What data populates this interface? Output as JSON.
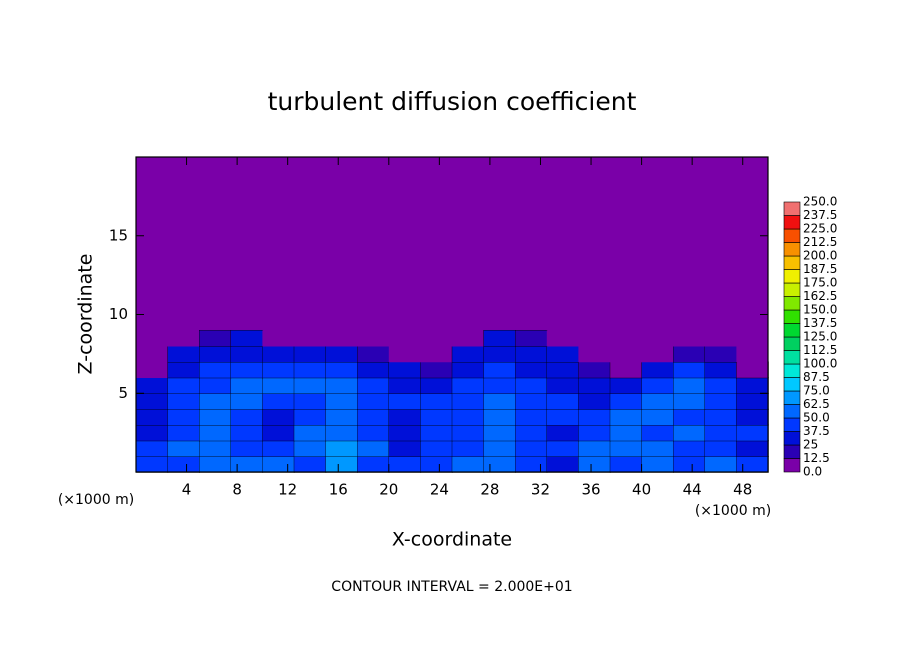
{
  "chart_data": {
    "type": "contour",
    "title": "turbulent diffusion coefficient",
    "x_label": "X-coordinate",
    "y_label": "Z-coordinate",
    "x_unit": "(×1000 m)",
    "y_unit": "(×1000 m)",
    "footnote": "CONTOUR INTERVAL = 2.000E+01",
    "xlim": [
      0,
      50
    ],
    "ylim": [
      0,
      20
    ],
    "xticks": [
      4,
      8,
      12,
      16,
      20,
      24,
      28,
      32,
      36,
      40,
      44,
      48
    ],
    "yticks": [
      5,
      10,
      15
    ],
    "field": {
      "x_edges": [
        0,
        2.5,
        5,
        7.5,
        10,
        12.5,
        15,
        17.5,
        20,
        22.5,
        25,
        27.5,
        30,
        32.5,
        35,
        37.5,
        40,
        42.5,
        45,
        47.5,
        50
      ],
      "z_edges": [
        0,
        1,
        2,
        3,
        4,
        5,
        6,
        7,
        8,
        9
      ],
      "values": [
        [
          45,
          40,
          55,
          60,
          50,
          45,
          70,
          45,
          40,
          45,
          60,
          50,
          40,
          35,
          50,
          45,
          55,
          45,
          50,
          40
        ],
        [
          40,
          50,
          60,
          45,
          40,
          50,
          65,
          55,
          35,
          40,
          45,
          50,
          45,
          40,
          55,
          60,
          50,
          45,
          40,
          35
        ],
        [
          35,
          45,
          55,
          40,
          35,
          55,
          60,
          45,
          35,
          40,
          40,
          55,
          40,
          35,
          45,
          55,
          45,
          50,
          45,
          40
        ],
        [
          35,
          40,
          50,
          45,
          35,
          45,
          55,
          40,
          35,
          45,
          40,
          50,
          45,
          40,
          40,
          50,
          55,
          45,
          40,
          35
        ],
        [
          30,
          40,
          55,
          50,
          40,
          45,
          50,
          45,
          40,
          40,
          45,
          50,
          40,
          40,
          35,
          45,
          55,
          50,
          40,
          30
        ],
        [
          25,
          45,
          45,
          55,
          50,
          50,
          50,
          45,
          35,
          30,
          45,
          45,
          40,
          35,
          25,
          30,
          45,
          50,
          40,
          25
        ],
        [
          0,
          35,
          40,
          45,
          40,
          45,
          40,
          35,
          25,
          20,
          35,
          40,
          35,
          30,
          20,
          10,
          25,
          40,
          35,
          10
        ],
        [
          0,
          30,
          35,
          35,
          30,
          30,
          30,
          20,
          0,
          0,
          30,
          35,
          30,
          25,
          0,
          0,
          0,
          20,
          20,
          0
        ],
        [
          0,
          0,
          20,
          25,
          0,
          0,
          0,
          0,
          0,
          0,
          0,
          30,
          20,
          0,
          0,
          0,
          0,
          0,
          0,
          0
        ]
      ]
    },
    "colorbar": {
      "levels": [
        {
          "value": 0,
          "label": "0.0"
        },
        12.5,
        25.0,
        37.5,
        {
          "value": 50,
          "label": "50.0"
        },
        62.5,
        {
          "value": 75,
          "label": "75.0"
        },
        87.5,
        {
          "value": 100,
          "label": "100.0"
        },
        112.5,
        {
          "value": 125,
          "label": "125.0"
        },
        137.5,
        {
          "value": 150,
          "label": "150.0"
        },
        162.5,
        {
          "value": 175,
          "label": "175.0"
        },
        187.5,
        {
          "value": 200,
          "label": "200.0"
        },
        212.5,
        {
          "value": 225,
          "label": "225.0"
        },
        237.5,
        {
          "value": 250,
          "label": "250.0"
        }
      ],
      "colors": [
        "#7a00a8",
        "#2a00b4",
        "#0010d8",
        "#0038ff",
        "#0068ff",
        "#0098ff",
        "#00c8ff",
        "#00e8d8",
        "#00e0a0",
        "#00d060",
        "#00d830",
        "#30e000",
        "#80e800",
        "#c8f000",
        "#f0f000",
        "#f8c000",
        "#f89000",
        "#f85000",
        "#f01010",
        "#f07070"
      ]
    }
  }
}
